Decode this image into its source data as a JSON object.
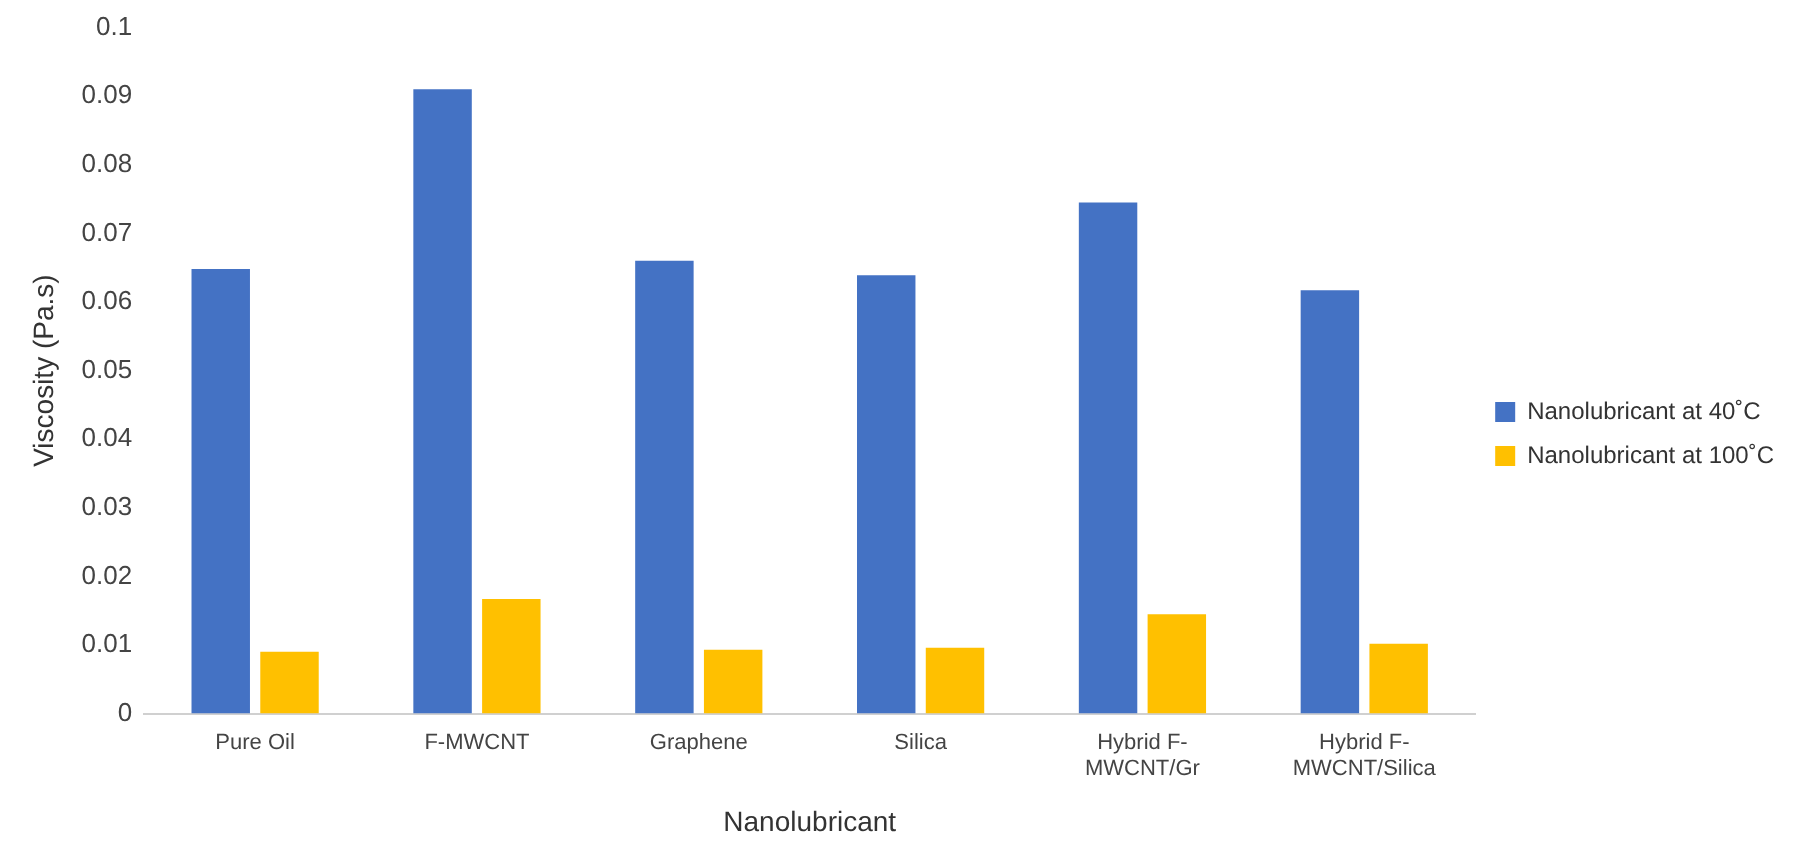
{
  "chart_data": {
    "type": "bar",
    "xlabel": "Nanolubricant",
    "ylabel": "Viscosity (Pa.s)",
    "categories": [
      "Pure Oil",
      "F-MWCNT",
      "Graphene",
      "Silica",
      "Hybrid F-MWCNT/Gr",
      "Hybrid F-MWCNT/Silica"
    ],
    "series": [
      {
        "name": "Nanolubricant at 40˚C",
        "color": "#4472c4",
        "values": [
          0.0648,
          0.091,
          0.066,
          0.0639,
          0.0745,
          0.0617
        ]
      },
      {
        "name": "Nanolubricant at 100˚C",
        "color": "#ffc000",
        "values": [
          0.009,
          0.0167,
          0.0093,
          0.0096,
          0.0145,
          0.0102
        ]
      }
    ],
    "ylim": [
      0,
      0.1
    ],
    "yticks": [
      0,
      0.01,
      0.02,
      0.03,
      0.04,
      0.05,
      0.06,
      0.07,
      0.08,
      0.09,
      0.1
    ],
    "grid": false,
    "legend": "right"
  }
}
